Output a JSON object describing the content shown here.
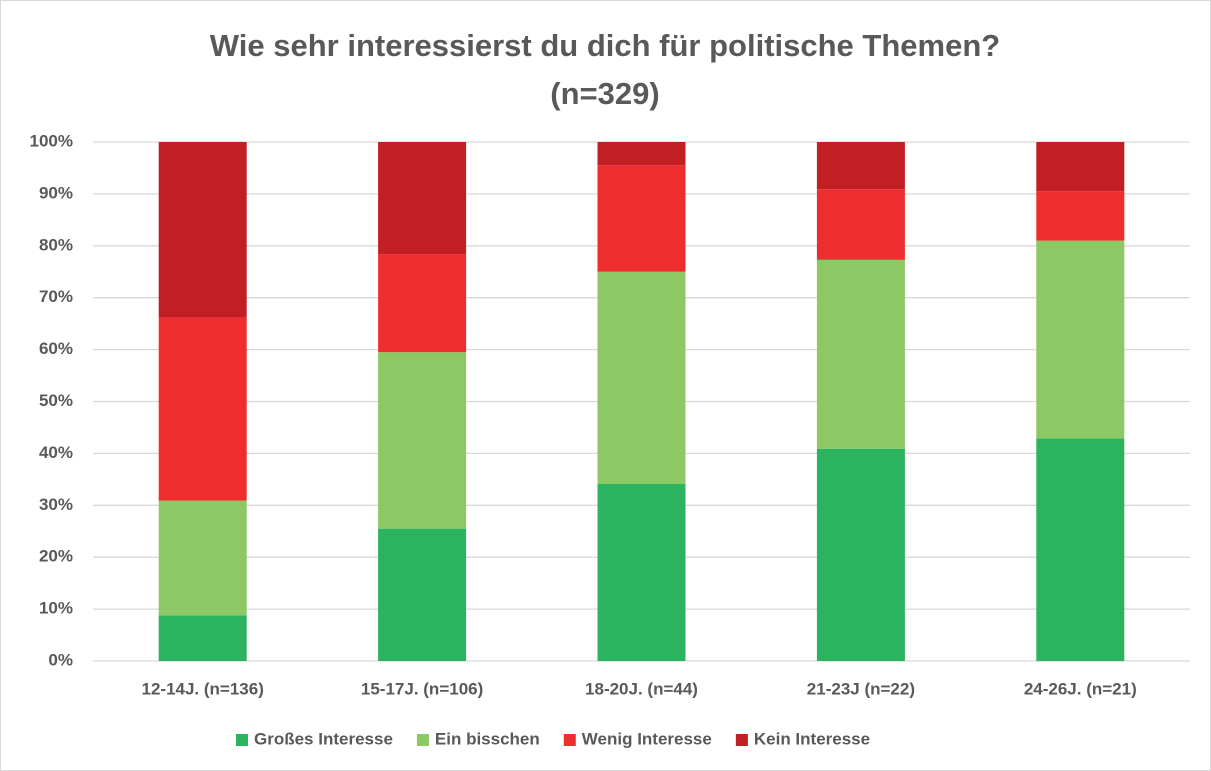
{
  "chart_data": {
    "type": "stacked_bar",
    "title": [
      "Wie sehr interessierst du dich für politische Themen?",
      "(n=329)"
    ],
    "categories": [
      "12-14J. (n=136)",
      "15-17J. (n=106)",
      "18-20J. (n=44)",
      "21-23J (n=22)",
      "24-26J. (n=21)"
    ],
    "series": [
      {
        "name": "Großes Interesse",
        "color": "#2bb35f",
        "values": [
          8.8,
          25.5,
          34.1,
          40.9,
          42.9
        ]
      },
      {
        "name": "Ein bisschen",
        "color": "#8cc863",
        "values": [
          22.1,
          34.0,
          40.9,
          36.4,
          38.1
        ]
      },
      {
        "name": "Wenig Interesse",
        "color": "#ee2e2e",
        "values": [
          35.3,
          18.9,
          20.5,
          13.6,
          9.5
        ]
      },
      {
        "name": "Kein Interesse",
        "color": "#c21f25",
        "values": [
          33.8,
          21.6,
          4.5,
          9.1,
          9.5
        ]
      }
    ],
    "ylim": [
      0,
      100
    ],
    "yticks": [
      {
        "value": 0,
        "label": "0%"
      },
      {
        "value": 10,
        "label": "10%"
      },
      {
        "value": 20,
        "label": "20%"
      },
      {
        "value": 30,
        "label": "30%"
      },
      {
        "value": 40,
        "label": "40%"
      },
      {
        "value": 50,
        "label": "50%"
      },
      {
        "value": 60,
        "label": "60%"
      },
      {
        "value": 70,
        "label": "70%"
      },
      {
        "value": 80,
        "label": "80%"
      },
      {
        "value": 90,
        "label": "90%"
      },
      {
        "value": 100,
        "label": "100%"
      }
    ],
    "grid": true,
    "legend": "bottom"
  }
}
